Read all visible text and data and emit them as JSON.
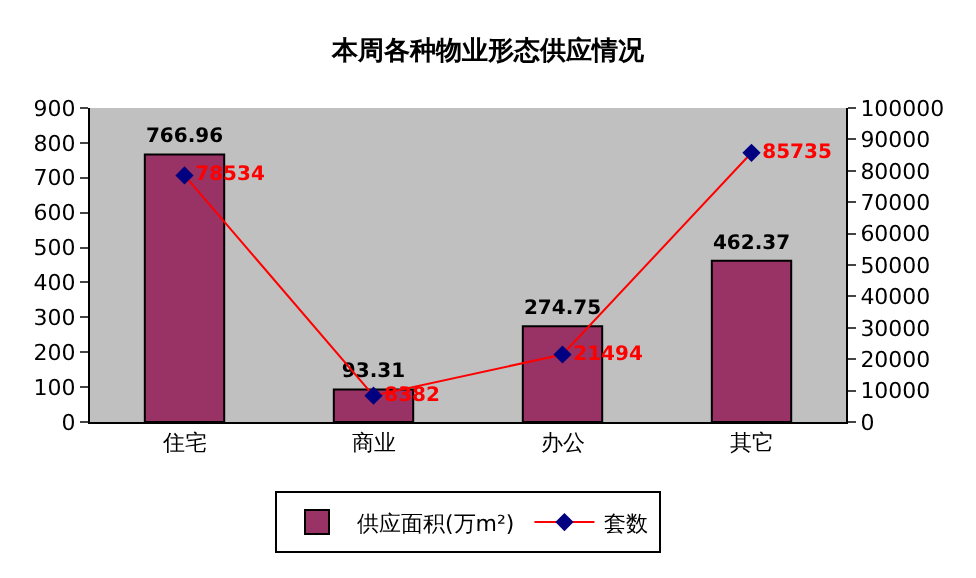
{
  "chart_data": {
    "type": "bar",
    "title": "本周各种物业形态供应情况",
    "categories": [
      "住宅",
      "商业",
      "办公",
      "其它"
    ],
    "series": [
      {
        "name": "供应面积(万m²)",
        "color": "#993366",
        "values": [
          766.96,
          93.31,
          274.75,
          462.37
        ]
      },
      {
        "name": "套数",
        "type": "line",
        "axis": "y2",
        "color": "#ff0000",
        "marker": "diamond",
        "colors": [
          "#000080",
          "#000080",
          "#000080",
          "#000080"
        ],
        "values": [
          78534,
          8382,
          21494,
          85735
        ]
      }
    ],
    "ylim": [
      0,
      900
    ],
    "yticks": [
      0,
      100,
      200,
      300,
      400,
      500,
      600,
      700,
      800,
      900
    ],
    "y2lim": [
      0,
      100000
    ],
    "y2ticks": [
      0,
      10000,
      20000,
      30000,
      40000,
      50000,
      60000,
      70000,
      80000,
      90000,
      100000
    ],
    "data_labels": true,
    "grid": false,
    "legend": "bottom"
  }
}
